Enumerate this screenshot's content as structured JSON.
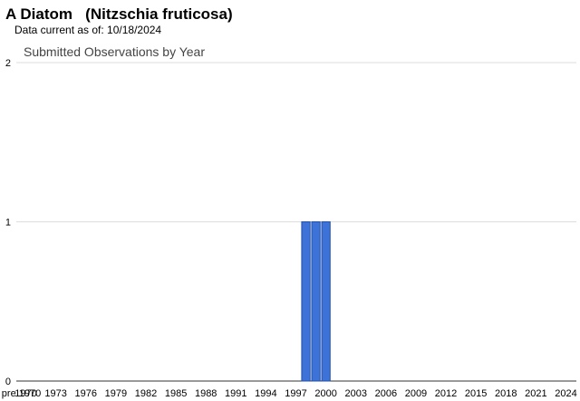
{
  "header": {
    "title": "A Diatom   (Nitzschia fruticosa)",
    "subtitle": "Data current as of: 10/18/2024"
  },
  "chart_data": {
    "type": "bar",
    "title": "Submitted Observations by Year",
    "categories": [
      "pre 1970",
      "1970",
      null,
      null,
      "1973",
      null,
      null,
      "1976",
      null,
      null,
      "1979",
      null,
      null,
      "1982",
      null,
      null,
      "1985",
      null,
      null,
      "1988",
      null,
      null,
      "1991",
      null,
      null,
      "1994",
      null,
      null,
      "1997",
      null,
      null,
      "2000",
      null,
      null,
      "2003",
      null,
      null,
      "2006",
      null,
      null,
      "2009",
      null,
      null,
      "2012",
      null,
      null,
      "2015",
      null,
      null,
      "2018",
      null,
      null,
      "2021",
      null,
      null,
      "2024"
    ],
    "values": [
      0,
      0,
      0,
      0,
      0,
      0,
      0,
      0,
      0,
      0,
      0,
      0,
      0,
      0,
      0,
      0,
      0,
      0,
      0,
      0,
      0,
      0,
      0,
      0,
      0,
      0,
      0,
      0,
      0,
      1,
      1,
      1,
      0,
      0,
      0,
      0,
      0,
      0,
      0,
      0,
      0,
      0,
      0,
      0,
      0,
      0,
      0,
      0,
      0,
      0,
      0,
      0,
      0,
      0,
      0,
      0
    ],
    "color": "#3d73d9",
    "ylim": [
      0,
      2
    ],
    "yticks": [
      0,
      1,
      2
    ],
    "grid": true
  }
}
